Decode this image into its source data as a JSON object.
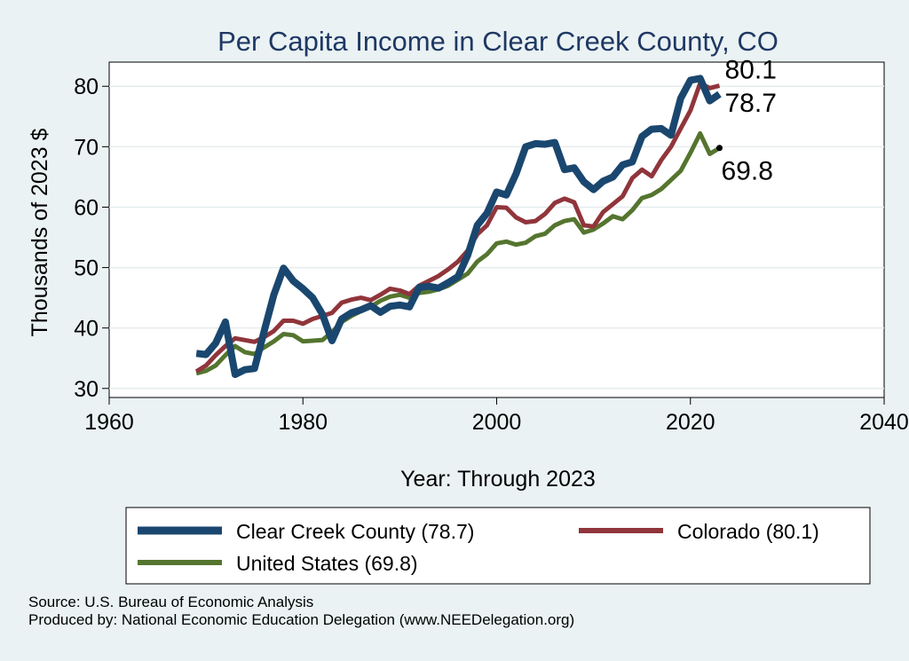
{
  "chart_data": {
    "type": "line",
    "title": "Per Capita Income in Clear Creek County, CO",
    "xlabel": "Year: Through 2023",
    "ylabel": "Thousands of 2023 $",
    "xlim": [
      1960,
      2040
    ],
    "ylim": [
      28.5,
      84
    ],
    "xticks": [
      1960,
      1980,
      2000,
      2020,
      2040
    ],
    "yticks": [
      30,
      40,
      50,
      60,
      70,
      80
    ],
    "grid": true,
    "legend_position": "bottom",
    "x": [
      1969,
      1970,
      1971,
      1972,
      1973,
      1974,
      1975,
      1976,
      1977,
      1978,
      1979,
      1980,
      1981,
      1982,
      1983,
      1984,
      1985,
      1986,
      1987,
      1988,
      1989,
      1990,
      1991,
      1992,
      1993,
      1994,
      1995,
      1996,
      1997,
      1998,
      1999,
      2000,
      2001,
      2002,
      2003,
      2004,
      2005,
      2006,
      2007,
      2008,
      2009,
      2010,
      2011,
      2012,
      2013,
      2014,
      2015,
      2016,
      2017,
      2018,
      2019,
      2020,
      2021,
      2022,
      2023
    ],
    "series": [
      {
        "name": "Clear Creek County",
        "legend_label": "Clear Creek County (78.7)",
        "color": "#1a476f",
        "end_label": "78.7",
        "values": [
          35.8,
          35.6,
          37.5,
          41.0,
          32.3,
          33.1,
          33.3,
          39.5,
          45.5,
          49.9,
          47.8,
          46.5,
          45.0,
          42.3,
          37.9,
          41.5,
          42.5,
          43.0,
          43.7,
          42.6,
          43.6,
          43.8,
          43.5,
          46.7,
          46.9,
          46.6,
          47.5,
          48.5,
          52.0,
          57.0,
          59.0,
          62.5,
          62.0,
          65.5,
          70.0,
          70.5,
          70.4,
          70.7,
          66.2,
          66.5,
          64.2,
          62.9,
          64.3,
          65.0,
          67.0,
          67.5,
          71.7,
          72.9,
          73.0,
          71.9,
          78.0,
          81.0,
          81.3,
          77.6,
          78.7
        ]
      },
      {
        "name": "Colorado",
        "legend_label": "Colorado (80.1)",
        "color": "#90353b",
        "end_label": "80.1",
        "values": [
          32.8,
          33.8,
          35.5,
          37.0,
          38.3,
          38.0,
          37.7,
          38.5,
          39.5,
          41.2,
          41.2,
          40.7,
          41.5,
          42.0,
          42.5,
          44.2,
          44.7,
          45.0,
          44.6,
          45.5,
          46.5,
          46.2,
          45.6,
          47.0,
          47.8,
          48.6,
          49.7,
          51.0,
          52.8,
          55.5,
          57.0,
          60.0,
          59.9,
          58.3,
          57.5,
          57.7,
          58.9,
          60.7,
          61.4,
          60.8,
          57.0,
          56.8,
          59.2,
          60.5,
          61.8,
          64.8,
          66.2,
          65.1,
          67.8,
          70.0,
          73.0,
          76.0,
          80.5,
          79.7,
          80.1
        ]
      },
      {
        "name": "United States",
        "legend_label": "United States (69.8)",
        "color": "#55752f",
        "end_label": "69.8",
        "values": [
          32.5,
          32.9,
          33.8,
          35.5,
          37.0,
          36.0,
          35.7,
          36.8,
          37.8,
          39.0,
          38.8,
          37.8,
          37.9,
          38.0,
          39.3,
          41.0,
          42.0,
          42.8,
          43.5,
          44.5,
          45.2,
          45.5,
          45.0,
          45.8,
          46.0,
          46.4,
          47.0,
          48.0,
          49.0,
          51.0,
          52.2,
          54.0,
          54.3,
          53.8,
          54.1,
          55.2,
          55.6,
          57.0,
          57.7,
          58.0,
          55.8,
          56.3,
          57.3,
          58.5,
          58.0,
          59.5,
          61.5,
          62.0,
          63.0,
          64.5,
          66.0,
          69.0,
          72.2,
          68.8,
          69.8
        ]
      }
    ]
  },
  "source": {
    "line1": "Source: U.S. Bureau of Economic Analysis",
    "line2": "Produced by: National Economic Education Delegation (www.NEEDelegation.org)"
  }
}
